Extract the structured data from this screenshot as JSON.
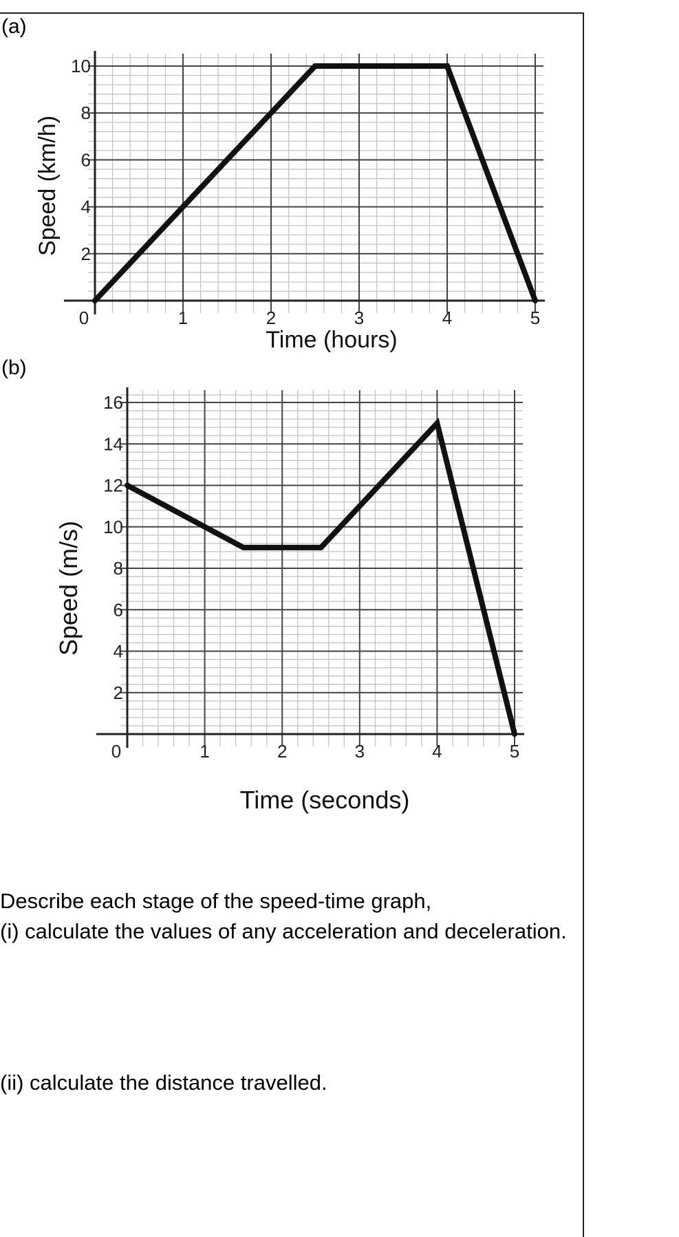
{
  "labels": {
    "part_a": "(a)",
    "part_b": "(b)"
  },
  "questions": {
    "intro": "Describe each stage of the speed-time graph,",
    "part_i": "(i) calculate the values of any acceleration and deceleration.",
    "part_ii": "(ii) calculate the distance travelled."
  },
  "colors": {
    "line": "#111111",
    "grid_major": "#444444",
    "grid_minor": "#c4c4c4"
  },
  "chart_data": [
    {
      "type": "line",
      "title": "",
      "xlabel": "Time (hours)",
      "ylabel": "Speed (km/h)",
      "x": [
        0,
        2.5,
        4,
        5
      ],
      "values": [
        0,
        10,
        10,
        0
      ],
      "xlim": [
        0,
        5
      ],
      "ylim": [
        0,
        10
      ],
      "xticks": [
        "0",
        "1",
        "2",
        "3",
        "4",
        "5"
      ],
      "yticks": [
        "2",
        "4",
        "6",
        "8",
        "10"
      ],
      "grid": true
    },
    {
      "type": "line",
      "title": "",
      "xlabel": "Time (seconds)",
      "ylabel": "Speed (m/s)",
      "x": [
        0,
        1.5,
        2.5,
        4,
        5
      ],
      "values": [
        12,
        9,
        9,
        15,
        0
      ],
      "xlim": [
        0,
        5
      ],
      "ylim": [
        0,
        16
      ],
      "xticks": [
        "0",
        "1",
        "2",
        "3",
        "4",
        "5"
      ],
      "yticks": [
        "2",
        "4",
        "6",
        "8",
        "10",
        "12",
        "14",
        "16"
      ],
      "grid": true
    }
  ]
}
